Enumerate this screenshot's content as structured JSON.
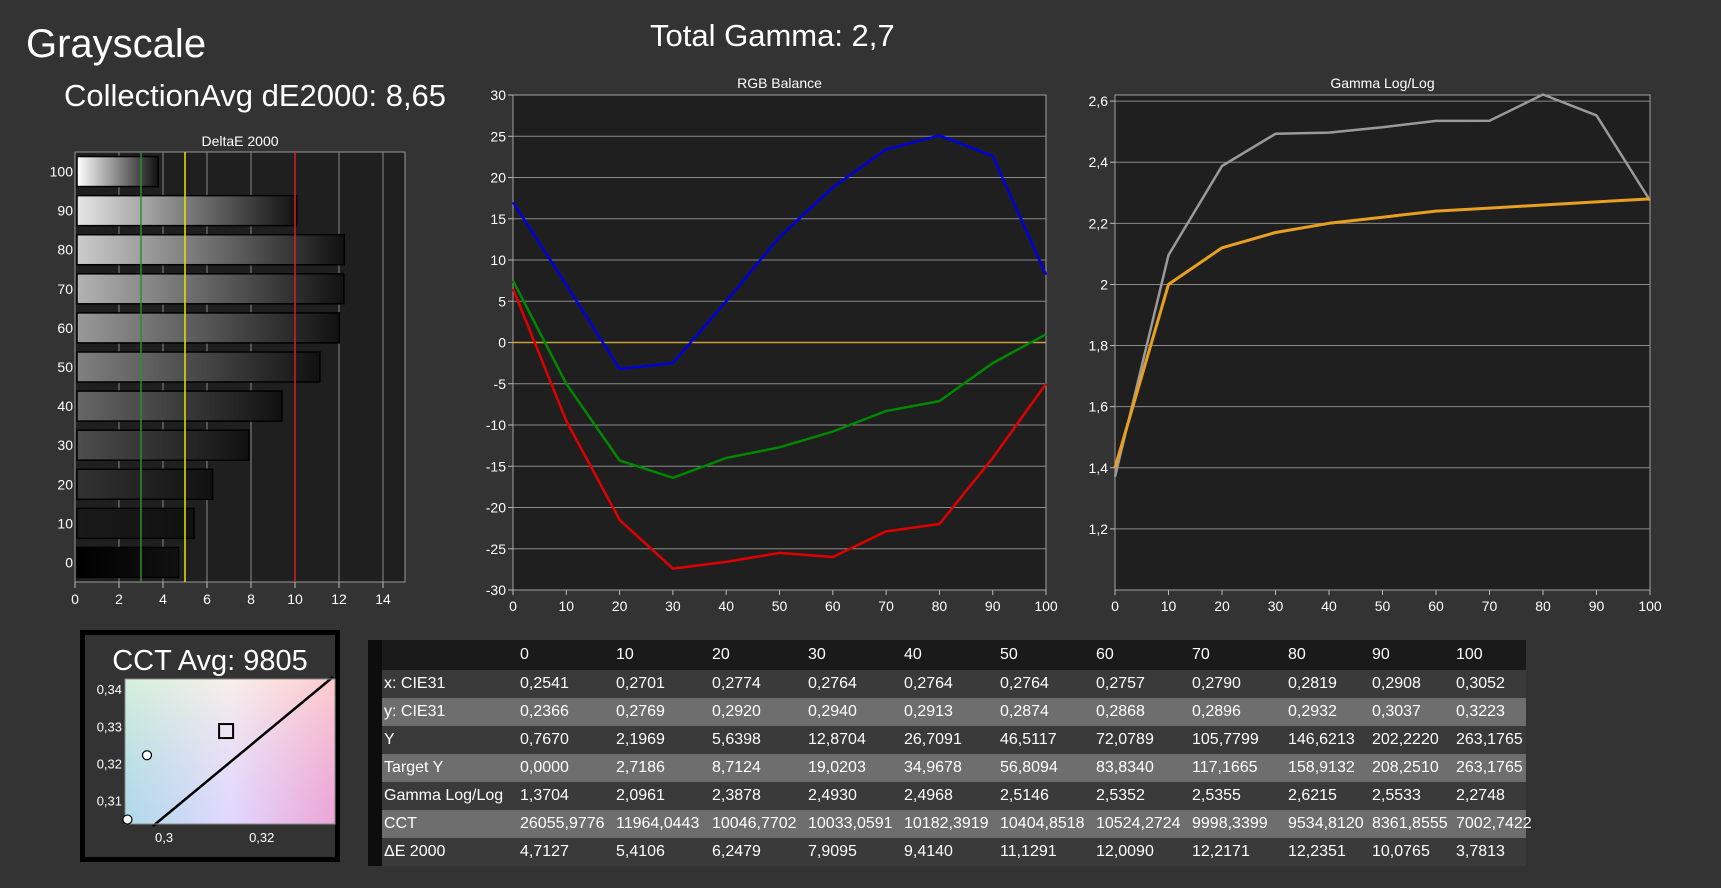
{
  "header": {
    "title": "Grayscale",
    "collection_avg": "CollectionAvg dE2000: 8,65",
    "total_gamma": "Total Gamma: 2,7"
  },
  "colors": {
    "background": "#333333",
    "plot_bg": "#222222",
    "red": "#e00000",
    "green": "#008800",
    "blue": "#0000dd",
    "gamma_target": "#e8a020",
    "gamma_measured": "#9a9a9a",
    "threshold_green": "#2e8b2e",
    "threshold_yellow": "#e6e600",
    "threshold_red": "#d42020"
  },
  "chart_data": [
    {
      "id": "deltae",
      "type": "bar",
      "title": "DeltaE 2000",
      "orientation": "horizontal",
      "categories": [
        "0",
        "10",
        "20",
        "30",
        "40",
        "50",
        "60",
        "70",
        "80",
        "90",
        "100"
      ],
      "values": [
        4.71,
        5.41,
        6.25,
        7.91,
        9.41,
        11.13,
        12.01,
        12.22,
        12.24,
        10.08,
        3.78
      ],
      "xlim": [
        0,
        15
      ],
      "xticks": [
        "0",
        "2",
        "4",
        "6",
        "8",
        "10",
        "12",
        "14"
      ],
      "threshold_lines": [
        3,
        5,
        10
      ]
    },
    {
      "id": "rgb",
      "type": "line",
      "title": "RGB Balance",
      "x": [
        0,
        10,
        20,
        30,
        40,
        50,
        60,
        70,
        80,
        90,
        100
      ],
      "ylim": [
        -30,
        30
      ],
      "xticks": [
        "0",
        "10",
        "20",
        "30",
        "40",
        "50",
        "60",
        "70",
        "80",
        "90",
        "100"
      ],
      "yticks": [
        "30",
        "25",
        "20",
        "15",
        "10",
        "5",
        "0",
        "-5",
        "-10",
        "-15",
        "-20",
        "-25",
        "-30"
      ],
      "series": [
        {
          "color": "#0000dd",
          "values": [
            17,
            7,
            -3.2,
            -2.5,
            5,
            12.8,
            18.8,
            23.4,
            25.1,
            22.6,
            8.2
          ]
        },
        {
          "color": "#008800",
          "values": [
            7.5,
            -5,
            -14.3,
            -16.4,
            -14,
            -12.7,
            -10.8,
            -8.3,
            -7.1,
            -2.5,
            1
          ]
        },
        {
          "color": "#e00000",
          "values": [
            6.5,
            -9.5,
            -21.5,
            -27.4,
            -26.6,
            -25.5,
            -26,
            -22.9,
            -22,
            -14,
            -5
          ]
        }
      ]
    },
    {
      "id": "gamma",
      "type": "line",
      "title": "Gamma Log/Log",
      "x": [
        0,
        10,
        20,
        30,
        40,
        50,
        60,
        70,
        80,
        90,
        100
      ],
      "ylim": [
        1.0,
        2.62
      ],
      "xticks": [
        "0",
        "10",
        "20",
        "30",
        "40",
        "50",
        "60",
        "70",
        "80",
        "90",
        "100"
      ],
      "yticks": [
        "2,6",
        "2,4",
        "2,2",
        "2",
        "1,8",
        "1,6",
        "1,4",
        "1,2"
      ],
      "series": [
        {
          "color": "#9a9a9a",
          "values": [
            1.3704,
            2.0961,
            2.3878,
            2.493,
            2.4968,
            2.5146,
            2.5352,
            2.5355,
            2.6215,
            2.5533,
            2.2748
          ]
        },
        {
          "color": "#e8a020",
          "values": [
            1.4,
            2.0,
            2.12,
            2.17,
            2.2,
            2.22,
            2.24,
            2.25,
            2.26,
            2.27,
            2.28
          ]
        }
      ]
    },
    {
      "id": "cct",
      "type": "scatter",
      "title": "CCT Avg: 9805",
      "xlim": [
        0.292,
        0.335
      ],
      "ylim": [
        0.304,
        0.343
      ],
      "xticks": [
        "0,3",
        "0,32"
      ],
      "yticks": [
        "0,34",
        "0,33",
        "0,32",
        "0,31"
      ],
      "points": [
        {
          "x": 0.3127,
          "y": 0.329,
          "marker": "square"
        },
        {
          "x": 0.2965,
          "y": 0.3225,
          "marker": "circle"
        },
        {
          "x": 0.2925,
          "y": 0.3052,
          "marker": "circle"
        }
      ]
    }
  ],
  "table": {
    "columns": [
      "",
      "0",
      "10",
      "20",
      "30",
      "40",
      "50",
      "60",
      "70",
      "80",
      "90",
      "100"
    ],
    "rows": [
      [
        "x: CIE31",
        "0,2541",
        "0,2701",
        "0,2774",
        "0,2764",
        "0,2764",
        "0,2764",
        "0,2757",
        "0,2790",
        "0,2819",
        "0,2908",
        "0,3052"
      ],
      [
        "y: CIE31",
        "0,2366",
        "0,2769",
        "0,2920",
        "0,2940",
        "0,2913",
        "0,2874",
        "0,2868",
        "0,2896",
        "0,2932",
        "0,3037",
        "0,3223"
      ],
      [
        "Y",
        "0,7670",
        "2,1969",
        "5,6398",
        "12,8704",
        "26,7091",
        "46,5117",
        "72,0789",
        "105,7799",
        "146,6213",
        "202,2220",
        "263,1765"
      ],
      [
        "Target Y",
        "0,0000",
        "2,7186",
        "8,7124",
        "19,0203",
        "34,9678",
        "56,8094",
        "83,8340",
        "117,1665",
        "158,9132",
        "208,2510",
        "263,1765"
      ],
      [
        "Gamma Log/Log",
        "1,3704",
        "2,0961",
        "2,3878",
        "2,4930",
        "2,4968",
        "2,5146",
        "2,5352",
        "2,5355",
        "2,6215",
        "2,5533",
        "2,2748"
      ],
      [
        "CCT",
        "26055,9776",
        "11964,0443",
        "10046,7702",
        "10033,0591",
        "10182,3919",
        "10404,8518",
        "10524,2724",
        "9998,3399",
        "9534,8120",
        "8361,8555",
        "7002,7422"
      ],
      [
        "ΔE 2000",
        "4,7127",
        "5,4106",
        "6,2479",
        "7,9095",
        "9,4140",
        "11,1291",
        "12,0090",
        "12,2171",
        "12,2351",
        "10,0765",
        "3,7813"
      ]
    ]
  }
}
